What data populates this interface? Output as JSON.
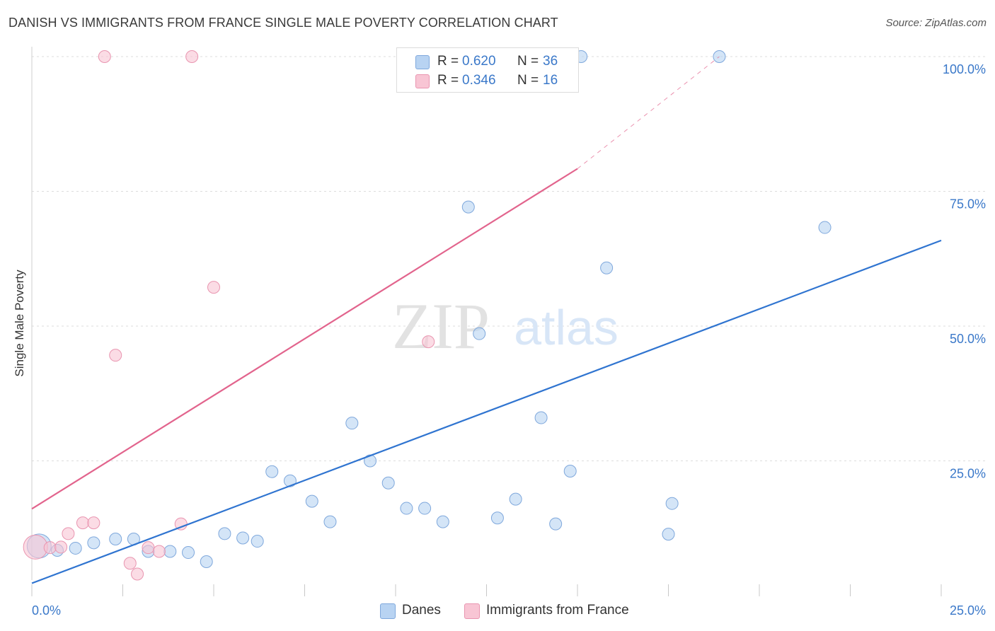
{
  "header": {
    "title": "DANISH VS IMMIGRANTS FROM FRANCE SINGLE MALE POVERTY CORRELATION CHART",
    "source": "Source: ZipAtlas.com"
  },
  "watermark": {
    "zip": "ZIP",
    "atlas": "atlas"
  },
  "legend": {
    "series": [
      {
        "r_label": "R =",
        "r_value": "0.620",
        "n_label": "N =",
        "n_value": "36"
      },
      {
        "r_label": "R =",
        "r_value": "0.346",
        "n_label": "N =",
        "n_value": "16"
      }
    ]
  },
  "bottom_legend": [
    "Danes",
    "Immigrants from France"
  ],
  "colors": {
    "danes_fill": "#b8d3f2",
    "danes_stroke": "#7fa8dc",
    "danes_line": "#2f74d0",
    "france_fill": "#f8c5d4",
    "france_stroke": "#e995b0",
    "france_line": "#e2648d",
    "tick_label": "#3a78c9",
    "grid": "#dddddd"
  },
  "chart_data": {
    "type": "scatter",
    "title": "DANISH VS IMMIGRANTS FROM FRANCE SINGLE MALE POVERTY CORRELATION CHART",
    "xlabel": "",
    "ylabel": "Single Male Poverty",
    "xlim": [
      0,
      25
    ],
    "ylim": [
      0,
      100
    ],
    "x_tick_labels": [
      "0.0%",
      "25.0%"
    ],
    "y_tick_values": [
      25,
      50,
      75,
      100
    ],
    "y_tick_labels": [
      "25.0%",
      "50.0%",
      "75.0%",
      "100.0%"
    ],
    "grid": true,
    "series": [
      {
        "name": "Danes",
        "r": 0.62,
        "n": 36,
        "trend": {
          "x": [
            0,
            25
          ],
          "y": [
            2.3,
            65.9
          ]
        },
        "points": [
          {
            "x": 0.2,
            "y": 9.2,
            "size": "large"
          },
          {
            "x": 0.7,
            "y": 8.4
          },
          {
            "x": 1.2,
            "y": 8.8
          },
          {
            "x": 1.7,
            "y": 9.8
          },
          {
            "x": 2.3,
            "y": 10.5
          },
          {
            "x": 2.8,
            "y": 10.5
          },
          {
            "x": 3.2,
            "y": 8.2
          },
          {
            "x": 3.8,
            "y": 8.2
          },
          {
            "x": 4.3,
            "y": 8.0
          },
          {
            "x": 4.8,
            "y": 6.3
          },
          {
            "x": 5.3,
            "y": 11.5
          },
          {
            "x": 5.8,
            "y": 10.7
          },
          {
            "x": 6.2,
            "y": 10.1
          },
          {
            "x": 6.6,
            "y": 23.0
          },
          {
            "x": 7.1,
            "y": 21.3
          },
          {
            "x": 7.7,
            "y": 17.5
          },
          {
            "x": 8.2,
            "y": 13.7
          },
          {
            "x": 8.8,
            "y": 32.0
          },
          {
            "x": 9.3,
            "y": 25.0
          },
          {
            "x": 9.8,
            "y": 20.9
          },
          {
            "x": 10.3,
            "y": 16.2
          },
          {
            "x": 10.8,
            "y": 16.2
          },
          {
            "x": 11.3,
            "y": 13.7
          },
          {
            "x": 12.0,
            "y": 72.1
          },
          {
            "x": 12.3,
            "y": 48.6
          },
          {
            "x": 12.8,
            "y": 14.4
          },
          {
            "x": 13.3,
            "y": 17.9
          },
          {
            "x": 14.0,
            "y": 33.0
          },
          {
            "x": 14.4,
            "y": 13.3
          },
          {
            "x": 14.8,
            "y": 23.1
          },
          {
            "x": 15.1,
            "y": 100.0
          },
          {
            "x": 15.8,
            "y": 60.8
          },
          {
            "x": 17.5,
            "y": 11.4
          },
          {
            "x": 17.6,
            "y": 17.1
          },
          {
            "x": 18.9,
            "y": 100.0
          },
          {
            "x": 21.8,
            "y": 68.3
          }
        ]
      },
      {
        "name": "Immigrants from France",
        "r": 0.346,
        "n": 16,
        "trend": {
          "x": [
            0,
            15
          ],
          "y": [
            16.1,
            79.2
          ],
          "dashed_to": {
            "x": 18.9,
            "y": 100.0
          }
        },
        "points": [
          {
            "x": 0.1,
            "y": 9.0,
            "size": "large"
          },
          {
            "x": 0.5,
            "y": 8.9
          },
          {
            "x": 0.8,
            "y": 9.0
          },
          {
            "x": 1.0,
            "y": 11.5
          },
          {
            "x": 1.4,
            "y": 13.5
          },
          {
            "x": 1.7,
            "y": 13.5
          },
          {
            "x": 2.0,
            "y": 100.0
          },
          {
            "x": 2.3,
            "y": 44.6
          },
          {
            "x": 2.7,
            "y": 6.0
          },
          {
            "x": 2.9,
            "y": 4.0
          },
          {
            "x": 3.2,
            "y": 8.9
          },
          {
            "x": 3.5,
            "y": 8.2
          },
          {
            "x": 4.1,
            "y": 13.3
          },
          {
            "x": 4.4,
            "y": 100.0
          },
          {
            "x": 5.0,
            "y": 57.2
          },
          {
            "x": 10.9,
            "y": 47.1
          }
        ]
      }
    ]
  }
}
